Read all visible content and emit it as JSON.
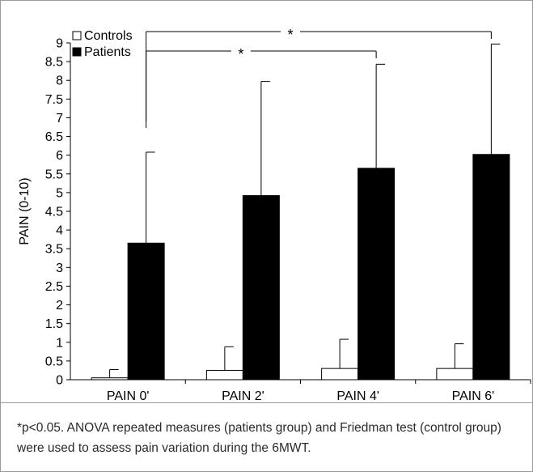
{
  "chart_data": {
    "type": "bar",
    "categories": [
      "PAIN 0'",
      "PAIN 2'",
      "PAIN 4'",
      "PAIN 6'"
    ],
    "series": [
      {
        "name": "Controls",
        "values": [
          0.05,
          0.25,
          0.3,
          0.3
        ],
        "errors": [
          0.22,
          0.63,
          0.78,
          0.66
        ],
        "color": "#ffffff"
      },
      {
        "name": "Patients",
        "values": [
          3.65,
          4.92,
          5.65,
          6.02
        ],
        "errors": [
          2.43,
          3.05,
          2.78,
          2.95
        ],
        "color": "#000000"
      }
    ],
    "ylabel": "PAIN (0-10)",
    "xlabel": "",
    "ylim": [
      0,
      9
    ],
    "yticks": [
      "0",
      "0.5",
      "1",
      "1.5",
      "2",
      "2.5",
      "3",
      "3.5",
      "4",
      "4.5",
      "5",
      "5.5",
      "6",
      "6.5",
      "7",
      "7.5",
      "8",
      "8.5",
      "9"
    ],
    "legend_position": "top-left",
    "significance": [
      {
        "from": "PAIN 0'",
        "to": "PAIN 6'",
        "label": "*"
      },
      {
        "from": "PAIN 0'",
        "to": "PAIN 4'",
        "label": "*"
      }
    ],
    "grid": false
  },
  "footnote": "*p<0.05. ANOVA repeated measures (patients group) and Friedman test (control group) were used to assess pain variation during the 6MWT."
}
